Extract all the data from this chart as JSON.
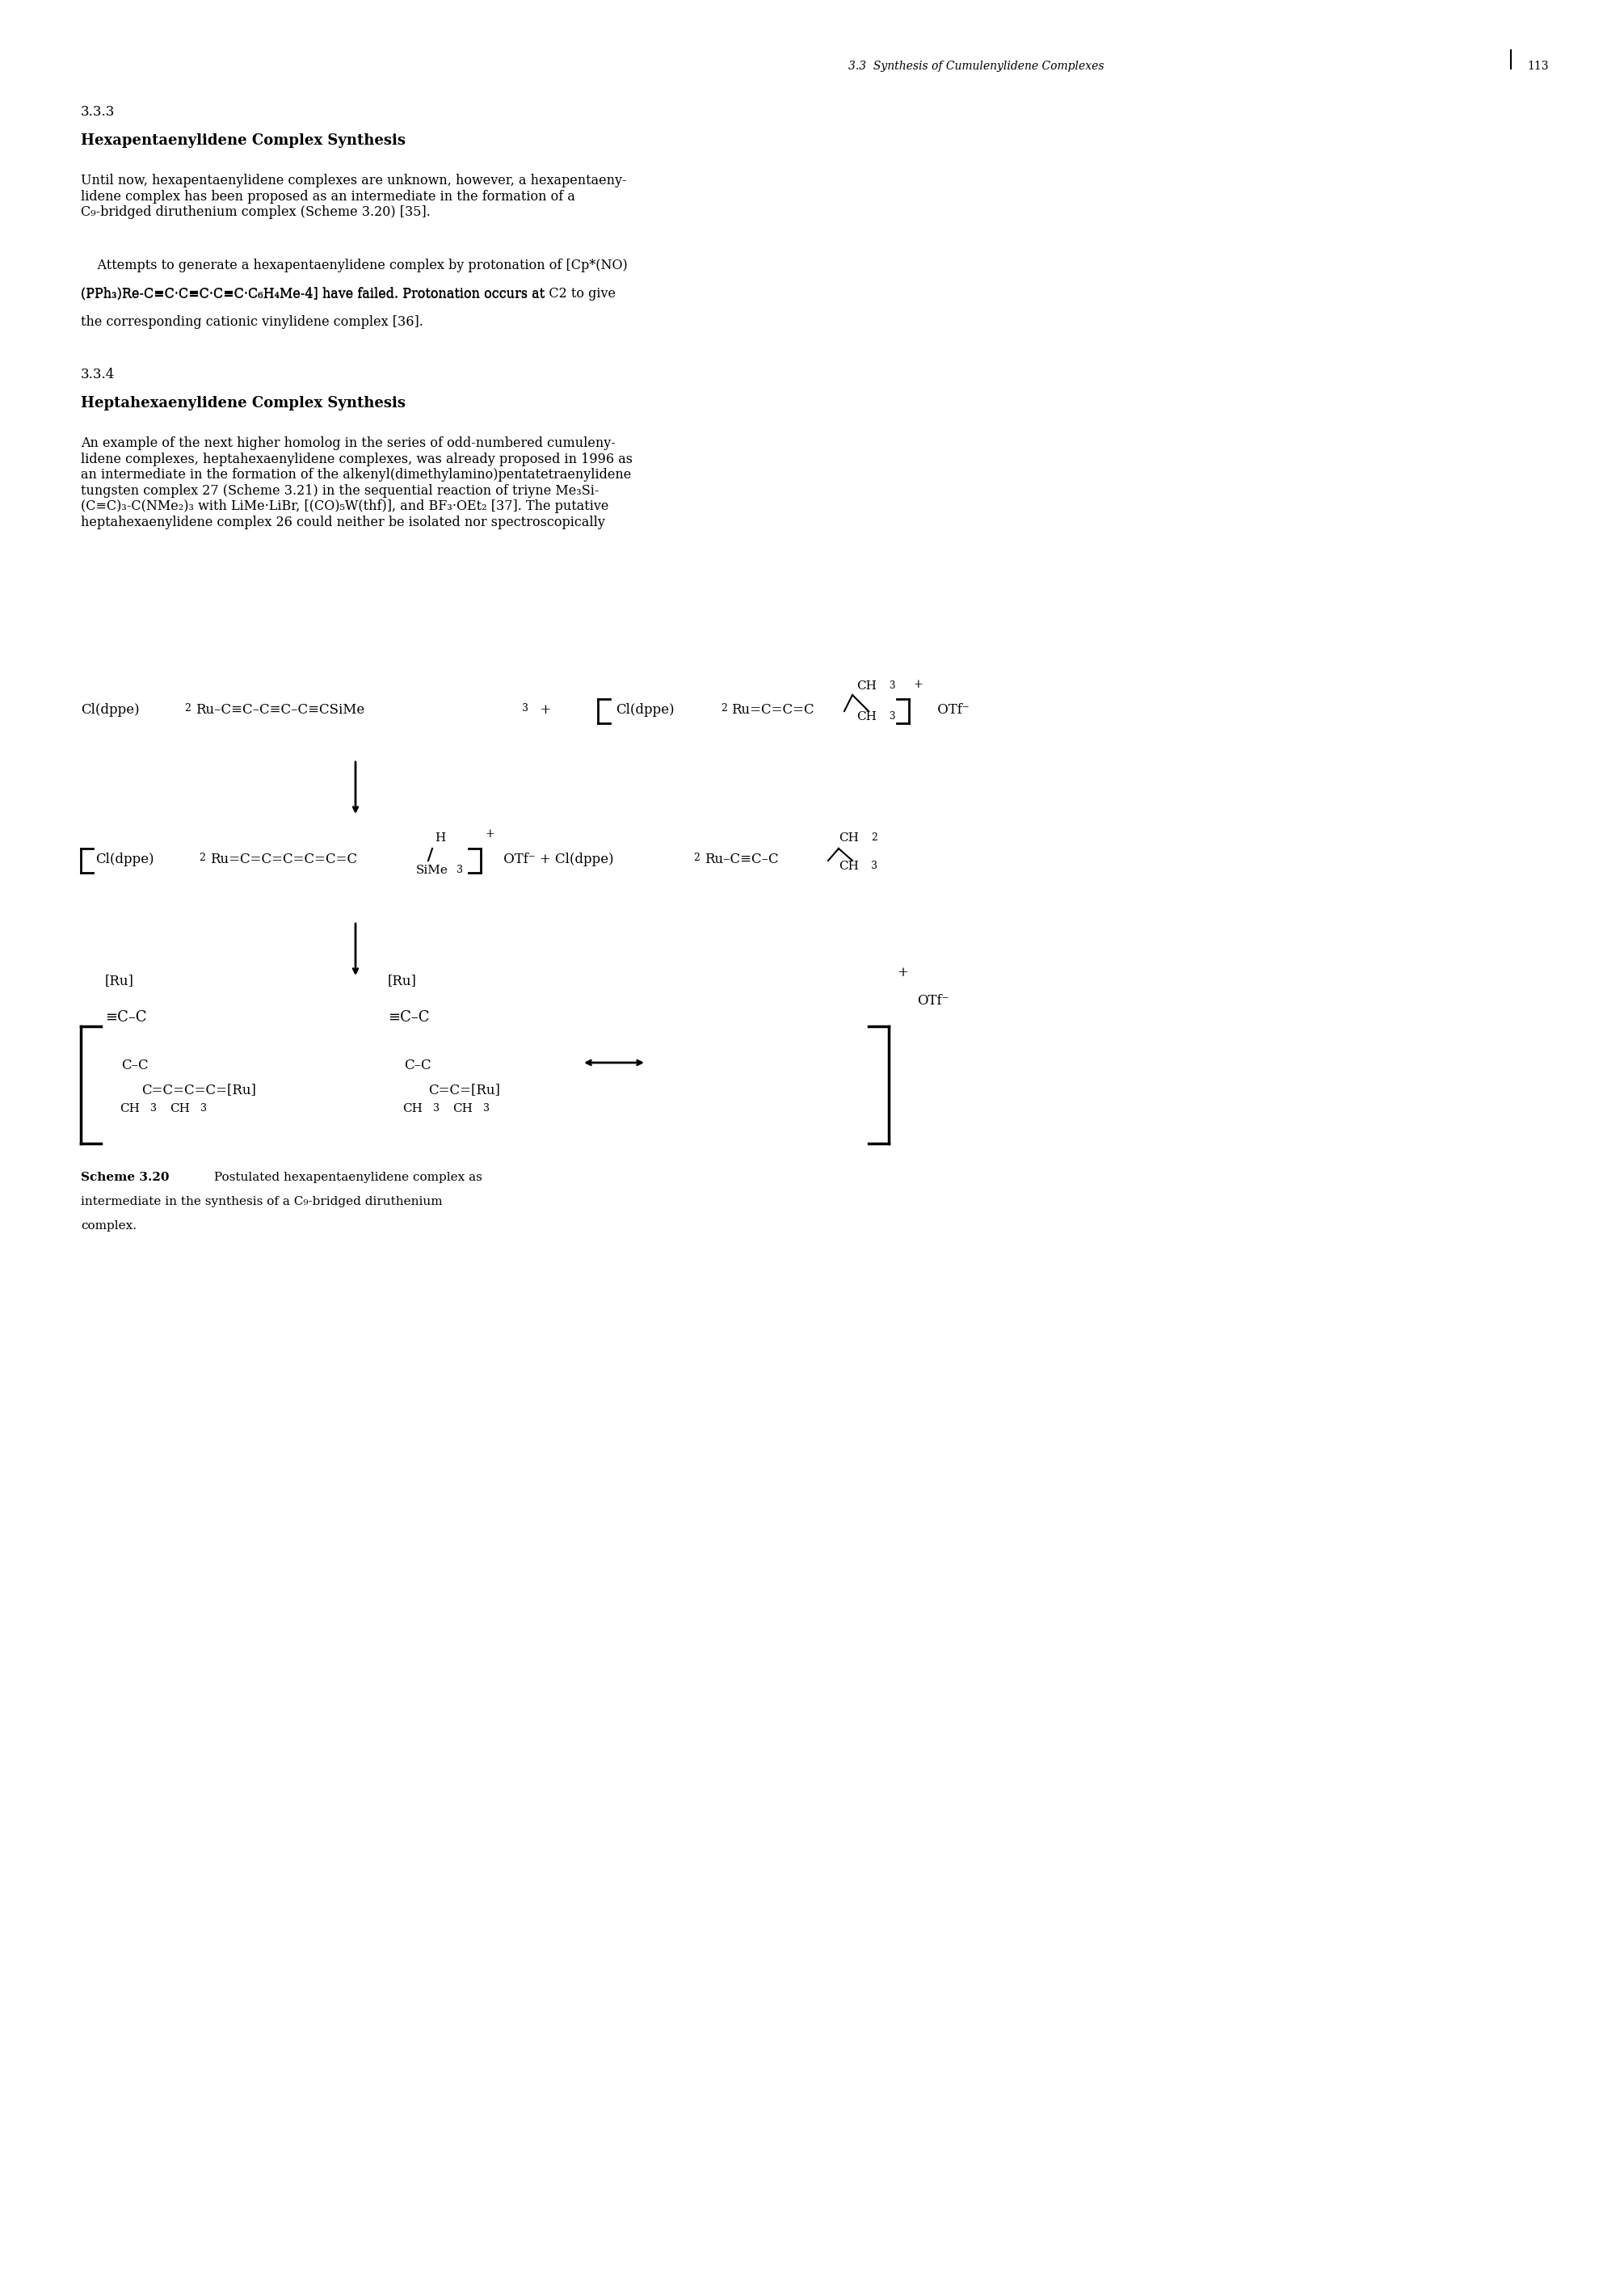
{
  "page_header": "3.3  Synthesis of Cumulenylidene Complexes",
  "page_number": "113",
  "section_number": "3.3.3",
  "section_title": "Hexapentaenylidene Complex Synthesis",
  "paragraph1": "Until now, hexapentaenylidene complexes are unknown, however, a hexapentaenylidene complex has been proposed as an intermediate in the formation of a C₉-bridged diruthenium complex (Scheme 3.20) [35].",
  "paragraph2_indent": "    Attempts to generate a hexapentaenylidene complex by protonation of [Cp*(NO)(PPh₃)Re-C≡C·C≡C·C≡C·C₆H₄Me-4] have failed. Protonation occurs at C2 to give the corresponding cationic vinylidene complex [36].",
  "section_number2": "3.3.4",
  "section_title2": "Heptahexaenylidene Complex Synthesis",
  "paragraph3": "An example of the next higher homolog in the series of odd-numbered cumulenylidene complexes, heptahexaenylidene complexes, was already proposed in 1996 as an intermediate in the formation of the alkenyl(dimethylamino)pentatetraenylidene tungsten complex 27 (Scheme 3.21) in the sequential reaction of triyne Me₃Si-(C≡C)₃-C(NMe₂)₃ with LiMe·LiBr, [(CO)₅W(thf)], and BF₃·OEt₂ [37]. The putative heptahexaenylidene complex 26 could neither be isolated nor spectroscopically",
  "scheme_label": "Scheme 3.20",
  "scheme_caption": "Postulated hexapentaenylidene complex as intermediate in the synthesis of a C₉-bridged diruthenium complex.",
  "bg_color": "#ffffff",
  "text_color": "#000000",
  "font_size_body": 11,
  "font_size_header": 10,
  "font_size_section": 12,
  "font_size_caption": 10
}
